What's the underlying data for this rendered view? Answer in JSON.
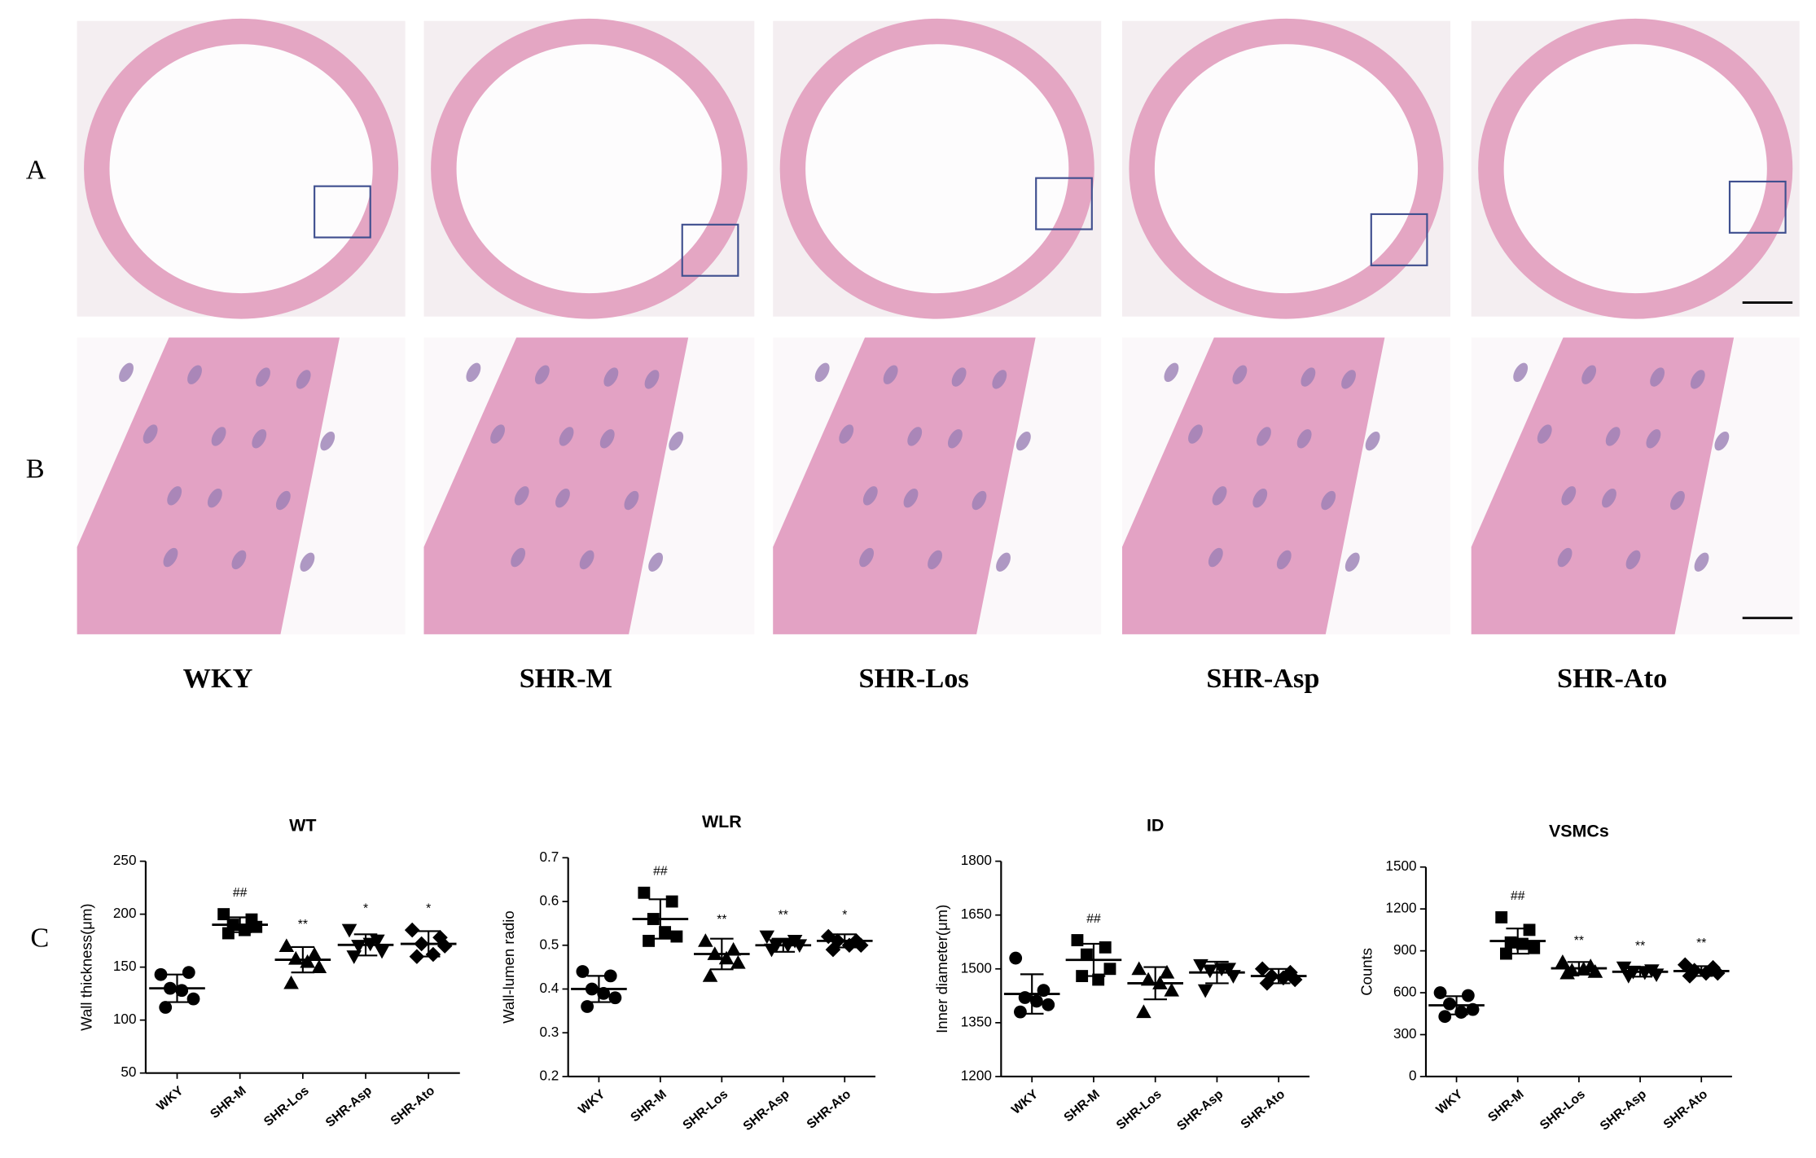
{
  "panels": {
    "labels": [
      "A",
      "B",
      "C"
    ],
    "groups": [
      "WKY",
      "SHR-M",
      "SHR-Los",
      "SHR-Asp",
      "SHR-Ato"
    ]
  },
  "chart_data": [
    {
      "type": "dot",
      "title": "WT",
      "y_label": "Wall thickness(μm)",
      "categories": [
        "WKY",
        "SHR-M",
        "SHR-Los",
        "SHR-Asp",
        "SHR-Ato"
      ],
      "markers": [
        "circle",
        "square",
        "triangle-up",
        "triangle-down",
        "diamond"
      ],
      "color": "#000000",
      "values": [
        [
          143,
          145,
          130,
          120,
          112,
          128
        ],
        [
          200,
          195,
          190,
          188,
          182,
          185
        ],
        [
          170,
          162,
          158,
          150,
          135,
          155
        ],
        [
          185,
          175,
          170,
          165,
          160,
          172
        ],
        [
          185,
          178,
          172,
          170,
          160,
          162
        ]
      ],
      "means": [
        130,
        190,
        157,
        171,
        172
      ],
      "errors": [
        13,
        7,
        12,
        10,
        12
      ],
      "annotations": [
        null,
        "##",
        "**",
        "*",
        "*"
      ],
      "ylim": [
        50,
        250
      ],
      "yticks": [
        50,
        100,
        150,
        200,
        250
      ]
    },
    {
      "type": "dot",
      "title": "WLR",
      "y_label": "Wall-lumen radio",
      "categories": [
        "WKY",
        "SHR-M",
        "SHR-Los",
        "SHR-Asp",
        "SHR-Ato"
      ],
      "markers": [
        "circle",
        "square",
        "triangle-up",
        "triangle-down",
        "diamond"
      ],
      "color": "#000000",
      "values": [
        [
          0.44,
          0.43,
          0.4,
          0.38,
          0.36,
          0.39
        ],
        [
          0.62,
          0.6,
          0.56,
          0.52,
          0.51,
          0.53
        ],
        [
          0.51,
          0.49,
          0.48,
          0.46,
          0.43,
          0.47
        ],
        [
          0.52,
          0.51,
          0.5,
          0.5,
          0.49,
          0.5
        ],
        [
          0.52,
          0.51,
          0.51,
          0.5,
          0.49,
          0.5
        ]
      ],
      "means": [
        0.4,
        0.56,
        0.48,
        0.5,
        0.51
      ],
      "errors": [
        0.03,
        0.045,
        0.035,
        0.015,
        0.015
      ],
      "annotations": [
        null,
        "##",
        "**",
        "**",
        "*"
      ],
      "ylim": [
        0.2,
        0.7
      ],
      "yticks": [
        0.2,
        0.3,
        0.4,
        0.5,
        0.6,
        0.7
      ]
    },
    {
      "type": "dot",
      "title": "ID",
      "y_label": "Inner diameter(μm)",
      "categories": [
        "WKY",
        "SHR-M",
        "SHR-Los",
        "SHR-Asp",
        "SHR-Ato"
      ],
      "markers": [
        "circle",
        "square",
        "triangle-up",
        "triangle-down",
        "diamond"
      ],
      "color": "#000000",
      "values": [
        [
          1530,
          1440,
          1420,
          1400,
          1380,
          1410
        ],
        [
          1580,
          1560,
          1540,
          1500,
          1480,
          1470
        ],
        [
          1500,
          1490,
          1470,
          1440,
          1380,
          1460
        ],
        [
          1510,
          1500,
          1495,
          1480,
          1440,
          1500
        ],
        [
          1500,
          1490,
          1480,
          1470,
          1460,
          1475
        ]
      ],
      "means": [
        1430,
        1525,
        1460,
        1490,
        1480
      ],
      "errors": [
        55,
        45,
        45,
        30,
        20
      ],
      "annotations": [
        null,
        "##",
        null,
        null,
        null
      ],
      "ylim": [
        1200,
        1800
      ],
      "yticks": [
        1200,
        1350,
        1500,
        1650,
        1800
      ]
    },
    {
      "type": "dot",
      "title": "VSMCs",
      "y_label": "Counts",
      "categories": [
        "WKY",
        "SHR-M",
        "SHR-Los",
        "SHR-Asp",
        "SHR-Ato"
      ],
      "markers": [
        "circle",
        "square",
        "triangle-up",
        "triangle-down",
        "diamond"
      ],
      "color": "#000000",
      "values": [
        [
          600,
          580,
          520,
          480,
          430,
          460
        ],
        [
          1140,
          1050,
          960,
          920,
          880,
          950
        ],
        [
          820,
          790,
          760,
          750,
          740,
          770
        ],
        [
          780,
          760,
          750,
          730,
          720,
          745
        ],
        [
          800,
          780,
          760,
          740,
          720,
          740
        ]
      ],
      "means": [
        510,
        970,
        775,
        750,
        755
      ],
      "errors": [
        65,
        90,
        45,
        35,
        35
      ],
      "annotations": [
        null,
        "##",
        "**",
        "**",
        "**"
      ],
      "ylim": [
        0,
        1500
      ],
      "yticks": [
        0,
        300,
        600,
        900,
        1200,
        1500
      ]
    }
  ]
}
